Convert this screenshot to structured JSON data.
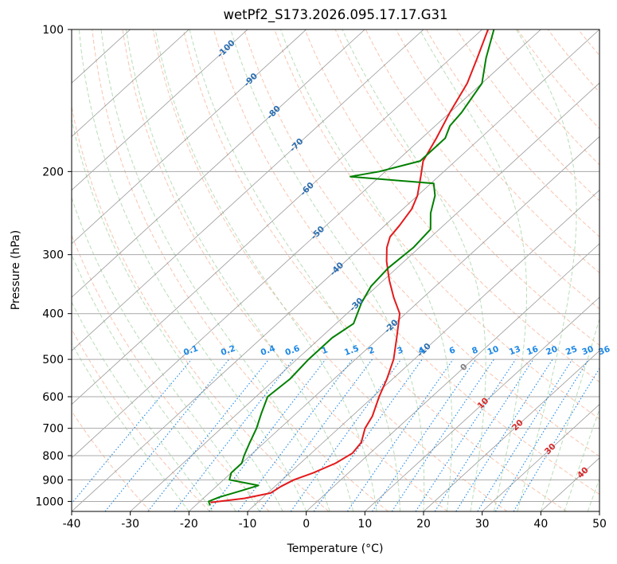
{
  "chart_data": {
    "type": "line",
    "title": "wetPf2_S173.2026.095.17.17.G31",
    "xlabel": "Temperature (°C)",
    "ylabel": "Pressure (hPa)",
    "xlim": [
      -40,
      50
    ],
    "ylim": [
      1050,
      100
    ],
    "y_scale": "log",
    "grid": true,
    "x_ticks": [
      -40,
      -30,
      -20,
      -10,
      0,
      10,
      20,
      30,
      40,
      50
    ],
    "y_ticks": [
      100,
      200,
      300,
      400,
      500,
      600,
      700,
      800,
      900,
      1000
    ],
    "skew_isotherm_labels": [
      -100,
      -90,
      -80,
      -70,
      -60,
      -50,
      -40,
      -30,
      -20,
      -10
    ],
    "mixing_ratio_labels": [
      "0.1",
      "0.2",
      "0.4",
      "0.6",
      "1",
      "1.5",
      "2",
      "3",
      "4",
      "6",
      "8",
      "10",
      "13",
      "16",
      "20",
      "25",
      "30",
      "36"
    ],
    "warm_isotherm_labels": [
      "0",
      "10",
      "20",
      "30",
      "40"
    ],
    "colors": {
      "temperature": "#e41a1c",
      "dewpoint": "#008000",
      "dry_adiabat": "#f4a582",
      "moist_adiabat": "#a6d4a6",
      "mixing_ratio": "#1e88e5",
      "isotherm_label": "#2a6db0",
      "warm_label": "#d62728",
      "zero_label": "#808080"
    },
    "series": [
      {
        "name": "Temperature",
        "points": [
          {
            "p": 1005,
            "t": -18
          },
          {
            "p": 985,
            "t": -13
          },
          {
            "p": 960,
            "t": -9.5
          },
          {
            "p": 930,
            "t": -9
          },
          {
            "p": 900,
            "t": -8
          },
          {
            "p": 870,
            "t": -6
          },
          {
            "p": 830,
            "t": -4
          },
          {
            "p": 790,
            "t": -3
          },
          {
            "p": 750,
            "t": -3.5
          },
          {
            "p": 700,
            "t": -5.5
          },
          {
            "p": 660,
            "t": -6.5
          },
          {
            "p": 600,
            "t": -9
          },
          {
            "p": 550,
            "t": -11
          },
          {
            "p": 500,
            "t": -13.5
          },
          {
            "p": 450,
            "t": -17
          },
          {
            "p": 400,
            "t": -21
          },
          {
            "p": 370,
            "t": -25
          },
          {
            "p": 340,
            "t": -29
          },
          {
            "p": 310,
            "t": -33
          },
          {
            "p": 290,
            "t": -35.5
          },
          {
            "p": 275,
            "t": -37
          },
          {
            "p": 260,
            "t": -37.5
          },
          {
            "p": 250,
            "t": -38
          },
          {
            "p": 240,
            "t": -38.5
          },
          {
            "p": 225,
            "t": -40
          },
          {
            "p": 205,
            "t": -43
          },
          {
            "p": 190,
            "t": -45.5
          },
          {
            "p": 170,
            "t": -47.5
          },
          {
            "p": 150,
            "t": -50
          },
          {
            "p": 130,
            "t": -52.5
          },
          {
            "p": 115,
            "t": -55.5
          },
          {
            "p": 100,
            "t": -59
          }
        ]
      },
      {
        "name": "Dewpoint",
        "points": [
          {
            "p": 1020,
            "t": -17.5
          },
          {
            "p": 1000,
            "t": -18.5
          },
          {
            "p": 980,
            "t": -17.5
          },
          {
            "p": 950,
            "t": -15
          },
          {
            "p": 925,
            "t": -13
          },
          {
            "p": 900,
            "t": -19
          },
          {
            "p": 870,
            "t": -20
          },
          {
            "p": 830,
            "t": -20
          },
          {
            "p": 800,
            "t": -21
          },
          {
            "p": 750,
            "t": -22.5
          },
          {
            "p": 700,
            "t": -24
          },
          {
            "p": 650,
            "t": -26
          },
          {
            "p": 600,
            "t": -28
          },
          {
            "p": 550,
            "t": -27.5
          },
          {
            "p": 500,
            "t": -28
          },
          {
            "p": 450,
            "t": -28
          },
          {
            "p": 420,
            "t": -27
          },
          {
            "p": 380,
            "t": -29.5
          },
          {
            "p": 350,
            "t": -31
          },
          {
            "p": 320,
            "t": -31.5
          },
          {
            "p": 290,
            "t": -31
          },
          {
            "p": 265,
            "t": -31.5
          },
          {
            "p": 245,
            "t": -34.5
          },
          {
            "p": 225,
            "t": -37
          },
          {
            "p": 212,
            "t": -39.5
          },
          {
            "p": 205,
            "t": -55
          },
          {
            "p": 200,
            "t": -51
          },
          {
            "p": 190,
            "t": -46
          },
          {
            "p": 170,
            "t": -46
          },
          {
            "p": 160,
            "t": -47.5
          },
          {
            "p": 150,
            "t": -48
          },
          {
            "p": 130,
            "t": -50
          },
          {
            "p": 115,
            "t": -54
          },
          {
            "p": 100,
            "t": -58
          }
        ]
      }
    ]
  }
}
